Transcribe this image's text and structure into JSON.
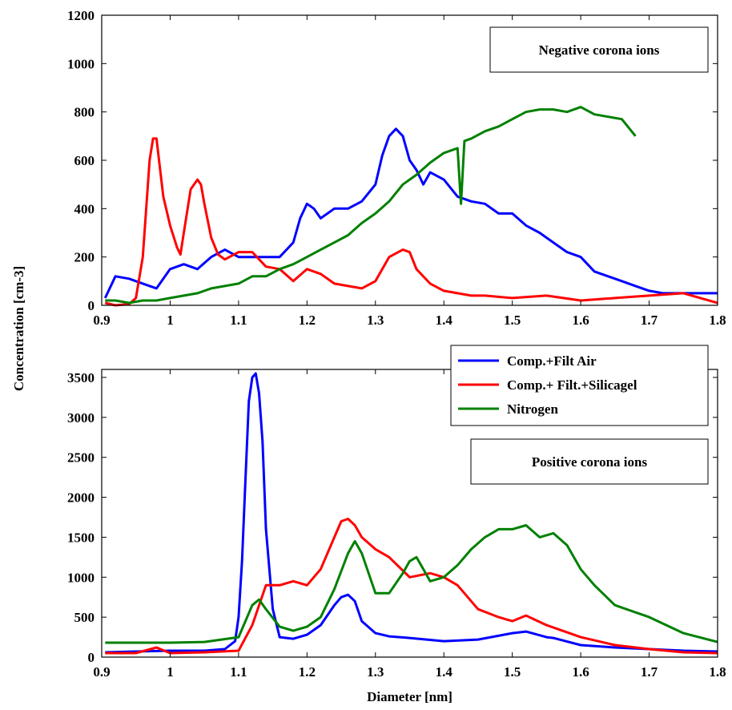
{
  "ylabel": "Concentration [cm-3]",
  "chart_data": [
    {
      "type": "line",
      "annotation": "Negative corona ions",
      "xlabel": "",
      "xlim": [
        0.9,
        1.8
      ],
      "ylim": [
        0,
        1200
      ],
      "xticks": [
        0.9,
        1.0,
        1.1,
        1.2,
        1.3,
        1.4,
        1.5,
        1.6,
        1.7,
        1.8
      ],
      "xtick_labels": [
        "0.9",
        "1",
        "1.1",
        "1.2",
        "1.3",
        "1.4",
        "1.5",
        "1.6",
        "1.7",
        "1.8"
      ],
      "yticks": [
        0,
        200,
        400,
        600,
        800,
        1000,
        1200
      ],
      "ytick_labels": [
        "0",
        "200",
        "400",
        "600",
        "800",
        "1000",
        "1200"
      ],
      "series": [
        {
          "name": "Comp.+Filt Air",
          "color": "#0000ff",
          "x": [
            0.905,
            0.92,
            0.94,
            0.96,
            0.98,
            1.0,
            1.02,
            1.04,
            1.06,
            1.08,
            1.1,
            1.12,
            1.14,
            1.16,
            1.18,
            1.19,
            1.2,
            1.21,
            1.22,
            1.24,
            1.26,
            1.28,
            1.3,
            1.31,
            1.32,
            1.33,
            1.34,
            1.35,
            1.36,
            1.37,
            1.38,
            1.4,
            1.42,
            1.44,
            1.46,
            1.48,
            1.5,
            1.52,
            1.54,
            1.56,
            1.58,
            1.6,
            1.62,
            1.64,
            1.66,
            1.68,
            1.7,
            1.72,
            1.74,
            1.76,
            1.78,
            1.8
          ],
          "y": [
            30,
            120,
            110,
            90,
            70,
            150,
            170,
            150,
            200,
            230,
            200,
            200,
            200,
            200,
            260,
            360,
            420,
            400,
            360,
            400,
            400,
            430,
            500,
            620,
            700,
            730,
            700,
            600,
            560,
            500,
            550,
            520,
            450,
            430,
            420,
            380,
            380,
            330,
            300,
            260,
            220,
            200,
            140,
            120,
            100,
            80,
            60,
            50,
            50,
            50,
            50,
            50
          ]
        },
        {
          "name": "Comp.+ Filt.+Silicagel",
          "color": "#ff0000",
          "x": [
            0.905,
            0.92,
            0.94,
            0.95,
            0.96,
            0.97,
            0.975,
            0.98,
            0.99,
            1.0,
            1.01,
            1.015,
            1.02,
            1.03,
            1.04,
            1.045,
            1.05,
            1.06,
            1.07,
            1.08,
            1.1,
            1.12,
            1.14,
            1.16,
            1.18,
            1.2,
            1.22,
            1.24,
            1.26,
            1.28,
            1.3,
            1.32,
            1.34,
            1.35,
            1.36,
            1.38,
            1.4,
            1.42,
            1.44,
            1.46,
            1.5,
            1.55,
            1.6,
            1.65,
            1.7,
            1.75,
            1.8
          ],
          "y": [
            10,
            0,
            5,
            30,
            200,
            600,
            690,
            690,
            450,
            330,
            240,
            210,
            300,
            480,
            520,
            500,
            420,
            280,
            210,
            190,
            220,
            220,
            160,
            150,
            100,
            150,
            130,
            90,
            80,
            70,
            100,
            200,
            230,
            220,
            150,
            90,
            60,
            50,
            40,
            40,
            30,
            40,
            20,
            30,
            40,
            50,
            10
          ]
        },
        {
          "name": "Nitrogen",
          "color": "#008000",
          "x": [
            0.905,
            0.92,
            0.94,
            0.96,
            0.98,
            1.0,
            1.02,
            1.04,
            1.06,
            1.08,
            1.1,
            1.12,
            1.14,
            1.16,
            1.18,
            1.2,
            1.22,
            1.24,
            1.26,
            1.28,
            1.3,
            1.32,
            1.34,
            1.36,
            1.38,
            1.4,
            1.42,
            1.425,
            1.43,
            1.44,
            1.46,
            1.48,
            1.5,
            1.52,
            1.54,
            1.56,
            1.58,
            1.6,
            1.62,
            1.64,
            1.66,
            1.68
          ],
          "y": [
            20,
            20,
            10,
            20,
            20,
            30,
            40,
            50,
            70,
            80,
            90,
            120,
            120,
            150,
            170,
            200,
            230,
            260,
            290,
            340,
            380,
            430,
            500,
            540,
            590,
            630,
            650,
            420,
            680,
            690,
            720,
            740,
            770,
            800,
            810,
            810,
            800,
            820,
            790,
            780,
            770,
            700
          ]
        }
      ]
    },
    {
      "type": "line",
      "annotation": "Positive corona ions",
      "xlabel": "Diameter [nm]",
      "xlim": [
        0.9,
        1.8
      ],
      "ylim": [
        0,
        3600
      ],
      "xticks": [
        0.9,
        1.0,
        1.1,
        1.2,
        1.3,
        1.4,
        1.5,
        1.6,
        1.7,
        1.8
      ],
      "xtick_labels": [
        "0.9",
        "1",
        "1.1",
        "1.2",
        "1.3",
        "1.4",
        "1.5",
        "1.6",
        "1.7",
        "1.8"
      ],
      "yticks": [
        0,
        500,
        1000,
        1500,
        2000,
        2500,
        3000,
        3500
      ],
      "ytick_labels": [
        "0",
        "500",
        "1000",
        "1500",
        "2000",
        "2500",
        "3000",
        "3500"
      ],
      "legend": {
        "position": "top-right",
        "entries": [
          "Comp.+Filt Air",
          "Comp.+ Filt.+Silicagel",
          "Nitrogen"
        ]
      },
      "series": [
        {
          "name": "Comp.+Filt Air",
          "color": "#0000ff",
          "x": [
            0.905,
            0.95,
            1.0,
            1.05,
            1.08,
            1.095,
            1.1,
            1.105,
            1.11,
            1.115,
            1.12,
            1.125,
            1.13,
            1.135,
            1.14,
            1.15,
            1.16,
            1.18,
            1.2,
            1.22,
            1.24,
            1.25,
            1.26,
            1.27,
            1.28,
            1.3,
            1.32,
            1.35,
            1.4,
            1.45,
            1.5,
            1.52,
            1.55,
            1.56,
            1.6,
            1.65,
            1.7,
            1.75,
            1.8
          ],
          "y": [
            60,
            70,
            80,
            80,
            100,
            200,
            500,
            1200,
            2200,
            3200,
            3500,
            3550,
            3300,
            2700,
            1600,
            600,
            250,
            230,
            280,
            400,
            650,
            750,
            780,
            700,
            450,
            300,
            260,
            240,
            200,
            220,
            300,
            320,
            250,
            240,
            150,
            120,
            100,
            80,
            70
          ]
        },
        {
          "name": "Comp.+ Filt.+Silicagel",
          "color": "#ff0000",
          "x": [
            0.905,
            0.95,
            0.98,
            1.0,
            1.05,
            1.1,
            1.12,
            1.14,
            1.16,
            1.18,
            1.2,
            1.22,
            1.24,
            1.25,
            1.26,
            1.27,
            1.28,
            1.3,
            1.32,
            1.35,
            1.38,
            1.4,
            1.42,
            1.45,
            1.48,
            1.5,
            1.52,
            1.55,
            1.6,
            1.65,
            1.7,
            1.75,
            1.8
          ],
          "y": [
            50,
            50,
            120,
            50,
            60,
            80,
            400,
            900,
            900,
            950,
            900,
            1100,
            1500,
            1700,
            1730,
            1650,
            1500,
            1350,
            1250,
            1000,
            1050,
            1000,
            900,
            600,
            500,
            450,
            520,
            400,
            250,
            150,
            100,
            60,
            50
          ]
        },
        {
          "name": "Nitrogen",
          "color": "#008000",
          "x": [
            0.905,
            0.95,
            1.0,
            1.05,
            1.1,
            1.12,
            1.13,
            1.14,
            1.16,
            1.18,
            1.2,
            1.22,
            1.24,
            1.26,
            1.27,
            1.28,
            1.3,
            1.32,
            1.34,
            1.35,
            1.36,
            1.37,
            1.38,
            1.4,
            1.42,
            1.44,
            1.46,
            1.48,
            1.5,
            1.52,
            1.54,
            1.56,
            1.58,
            1.6,
            1.62,
            1.65,
            1.7,
            1.75,
            1.8
          ],
          "y": [
            180,
            180,
            180,
            190,
            250,
            650,
            720,
            600,
            380,
            330,
            380,
            500,
            850,
            1300,
            1450,
            1300,
            800,
            800,
            1050,
            1200,
            1250,
            1100,
            950,
            1000,
            1150,
            1350,
            1500,
            1600,
            1600,
            1650,
            1500,
            1550,
            1400,
            1100,
            900,
            650,
            500,
            300,
            190
          ]
        }
      ]
    }
  ]
}
